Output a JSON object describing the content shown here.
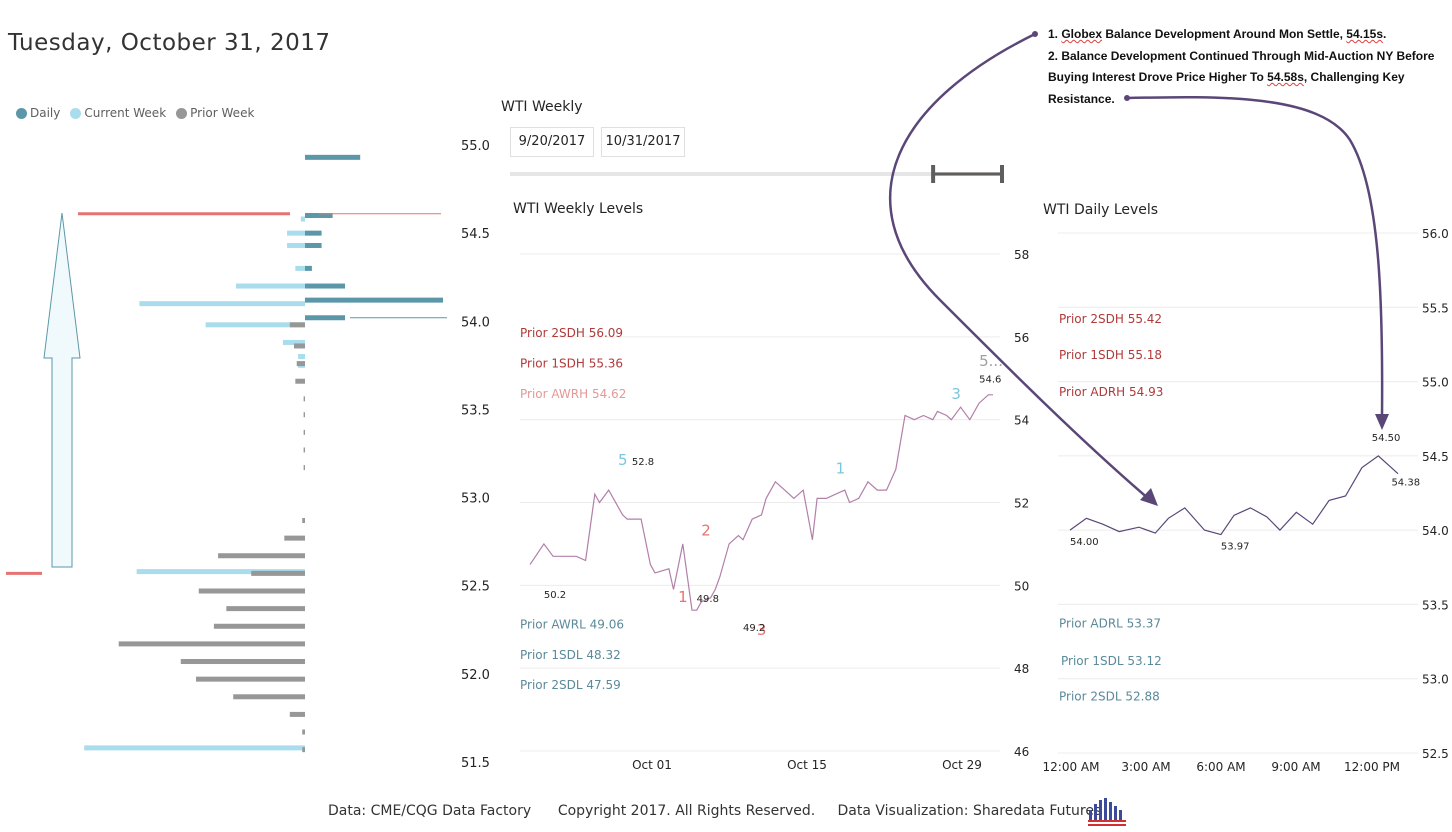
{
  "header": {
    "title": "Tuesday, October 31, 2017"
  },
  "legend": [
    {
      "label": "Daily",
      "color": "#5b97a8"
    },
    {
      "label": "Current Week",
      "color": "#a9dced"
    },
    {
      "label": "Prior Week",
      "color": "#979797"
    }
  ],
  "slicer": {
    "title": "WTI Weekly",
    "start_date": "9/20/2017",
    "end_date": "10/31/2017",
    "range_fraction": [
      0.86,
      1.0
    ]
  },
  "note": {
    "line1_prefix": "1. ",
    "line1_squig1": "Globex",
    "line1_mid": " Balance Development Around Mon Settle, ",
    "line1_squig2": "54.15s",
    "line1_end": ".",
    "line2_a": "2. Balance Development Continued Through Mid-Auction NY Before Buying Interest Drove Price Higher To ",
    "line2_squig": "54.58s",
    "line2_b": ", Challenging Key Resistance."
  },
  "footer": {
    "text": "Data: CME/CQG Data Factory      Copyright 2017. All Rights Reserved.     Data Visualization: Sharedata Futures"
  },
  "colors": {
    "daily": "#5b97a8",
    "current_week": "#a9dced",
    "prior_week": "#979797",
    "high_line": "#e57373",
    "price_line": "#b27fa9",
    "arrow": "#5a4778",
    "sdh_label": "#b03a3a",
    "sdl_label": "#5b8a9a"
  },
  "chart_data": [
    {
      "type": "bar",
      "name": "volume-profile",
      "orientation": "horizontal",
      "title": "",
      "ylim": [
        51.5,
        55.0
      ],
      "y_ticks": [
        "55.0",
        "54.5",
        "54.0",
        "53.5",
        "53.0",
        "52.5",
        "52.0",
        "51.5"
      ],
      "y_tick_values": [
        55.0,
        54.5,
        54.0,
        53.5,
        53.0,
        52.5,
        52.0,
        51.5
      ],
      "series": [
        {
          "name": "Daily",
          "side": "right",
          "values": [
            [
              54.93,
              0.4
            ],
            [
              54.6,
              0.2
            ],
            [
              54.5,
              0.12
            ],
            [
              54.43,
              0.12
            ],
            [
              54.3,
              0.05
            ],
            [
              54.2,
              0.29
            ],
            [
              54.12,
              1.0
            ],
            [
              54.02,
              0.29
            ]
          ]
        },
        {
          "name": "Current Week",
          "side": "left",
          "values": [
            [
              54.58,
              0.03
            ],
            [
              54.5,
              0.13
            ],
            [
              54.43,
              0.13
            ],
            [
              54.3,
              0.07
            ],
            [
              54.2,
              0.5
            ],
            [
              54.1,
              1.2
            ],
            [
              53.98,
              0.72
            ],
            [
              53.88,
              0.16
            ],
            [
              53.8,
              0.05
            ],
            [
              53.75,
              0.05
            ],
            [
              52.58,
              1.22
            ],
            [
              51.58,
              1.6
            ]
          ]
        },
        {
          "name": "Prior Week",
          "side": "left",
          "values": [
            [
              53.98,
              0.11
            ],
            [
              53.86,
              0.08
            ],
            [
              53.76,
              0.06
            ],
            [
              53.66,
              0.07
            ],
            [
              53.56,
              0.01
            ],
            [
              53.47,
              0.01
            ],
            [
              53.37,
              0.01
            ],
            [
              53.27,
              0.01
            ],
            [
              53.17,
              0.01
            ],
            [
              52.87,
              0.02
            ],
            [
              52.77,
              0.15
            ],
            [
              52.67,
              0.63
            ],
            [
              52.57,
              0.39
            ],
            [
              52.47,
              0.77
            ],
            [
              52.37,
              0.57
            ],
            [
              52.27,
              0.66
            ],
            [
              52.17,
              1.35
            ],
            [
              52.07,
              0.9
            ],
            [
              51.97,
              0.79
            ],
            [
              51.87,
              0.52
            ],
            [
              51.77,
              0.11
            ],
            [
              51.67,
              0.02
            ],
            [
              51.57,
              0.02
            ]
          ]
        }
      ],
      "high_line": 54.61,
      "low_line": 52.57
    },
    {
      "type": "line",
      "name": "WTI Weekly Levels",
      "title": "WTI Weekly Levels",
      "x_ticks": [
        "Oct 01",
        "Oct 15",
        "Oct 29"
      ],
      "ylim": [
        46,
        58
      ],
      "y_ticks": [
        "58",
        "56",
        "54",
        "52",
        "50",
        "48",
        "46"
      ],
      "y_tick_values": [
        58,
        56,
        54,
        52,
        50,
        48,
        46
      ],
      "series": [
        {
          "name": "WTI",
          "x": [
            0.0,
            0.03,
            0.05,
            0.08,
            0.1,
            0.12,
            0.14,
            0.15,
            0.17,
            0.2,
            0.21,
            0.24,
            0.26,
            0.27,
            0.3,
            0.31,
            0.33,
            0.35,
            0.36,
            0.37,
            0.39,
            0.4,
            0.41,
            0.43,
            0.45,
            0.46,
            0.48,
            0.5,
            0.51,
            0.53,
            0.55,
            0.57,
            0.59,
            0.61,
            0.62,
            0.64,
            0.66,
            0.68,
            0.69,
            0.71,
            0.73,
            0.75,
            0.77,
            0.79,
            0.81,
            0.83,
            0.85,
            0.87,
            0.88,
            0.9,
            0.91,
            0.93,
            0.95,
            0.97,
            0.99,
            1.0
          ],
          "y": [
            50.5,
            51.0,
            50.7,
            50.7,
            50.7,
            50.6,
            52.2,
            52.0,
            52.3,
            51.7,
            51.6,
            51.6,
            50.5,
            50.3,
            50.4,
            49.9,
            51.0,
            49.4,
            49.4,
            49.6,
            49.7,
            49.9,
            50.2,
            51.0,
            51.2,
            51.1,
            51.6,
            51.7,
            52.1,
            52.5,
            52.3,
            52.1,
            52.3,
            51.1,
            52.1,
            52.1,
            52.2,
            52.3,
            52.0,
            52.1,
            52.5,
            52.3,
            52.3,
            52.8,
            54.1,
            54.0,
            54.1,
            54.0,
            54.2,
            54.1,
            54.0,
            54.3,
            54.0,
            54.4,
            54.6,
            54.6
          ]
        }
      ],
      "levels": [
        {
          "label": "Prior 2SDH 56.09",
          "value": 56.09,
          "kind": "high"
        },
        {
          "label": "Prior 1SDH 55.36",
          "value": 55.36,
          "kind": "high"
        },
        {
          "label": "Prior AWRH 54.62",
          "value": 54.62,
          "kind": "high-light"
        },
        {
          "label": "Prior AWRL 49.06",
          "value": 49.06,
          "kind": "low"
        },
        {
          "label": "Prior 1SDL 48.32",
          "value": 48.32,
          "kind": "low"
        },
        {
          "label": "Prior 2SDL 47.59",
          "value": 47.59,
          "kind": "low"
        }
      ],
      "annotations": [
        {
          "text": "5",
          "x": 0.19,
          "y": 52.9,
          "color": "blue"
        },
        {
          "text": "52.8",
          "x": 0.22,
          "y": 52.9,
          "color": "dark"
        },
        {
          "text": "1",
          "x": 0.66,
          "y": 52.7,
          "color": "blue"
        },
        {
          "text": "3",
          "x": 0.91,
          "y": 54.5,
          "color": "blue"
        },
        {
          "text": "5...",
          "x": 0.97,
          "y": 55.3,
          "color": "grey"
        },
        {
          "text": "54.6",
          "x": 0.97,
          "y": 54.9,
          "color": "dark"
        },
        {
          "text": "2",
          "x": 0.37,
          "y": 51.2,
          "color": "red"
        },
        {
          "text": "1",
          "x": 0.32,
          "y": 49.6,
          "color": "red"
        },
        {
          "text": "3",
          "x": 0.49,
          "y": 48.8,
          "color": "red"
        },
        {
          "text": "50.2",
          "x": 0.03,
          "y": 49.7,
          "color": "dark"
        },
        {
          "text": "49.8",
          "x": 0.36,
          "y": 49.6,
          "color": "dark"
        },
        {
          "text": "49.2",
          "x": 0.46,
          "y": 48.9,
          "color": "dark"
        }
      ]
    },
    {
      "type": "line",
      "name": "WTI Daily Levels",
      "title": "WTI Daily Levels",
      "x_ticks": [
        "12:00 AM",
        "3:00 AM",
        "6:00 AM",
        "9:00 AM",
        "12:00 PM"
      ],
      "ylim": [
        52.5,
        56.0
      ],
      "y_ticks": [
        "56.0",
        "55.5",
        "55.0",
        "54.5",
        "54.0",
        "53.5",
        "53.0",
        "52.5"
      ],
      "y_tick_values": [
        56.0,
        55.5,
        55.0,
        54.5,
        54.0,
        53.5,
        53.0,
        52.5
      ],
      "series": [
        {
          "name": "WTI",
          "x": [
            0.0,
            0.05,
            0.1,
            0.15,
            0.21,
            0.26,
            0.3,
            0.35,
            0.41,
            0.46,
            0.5,
            0.55,
            0.6,
            0.64,
            0.69,
            0.74,
            0.79,
            0.84,
            0.89,
            0.94,
            0.98,
            1.0
          ],
          "y": [
            54.0,
            54.08,
            54.04,
            53.99,
            54.02,
            53.98,
            54.08,
            54.15,
            54.0,
            53.97,
            54.1,
            54.15,
            54.09,
            54.0,
            54.12,
            54.04,
            54.2,
            54.23,
            54.42,
            54.5,
            54.42,
            54.38
          ]
        }
      ],
      "levels": [
        {
          "label": "Prior 2SDH 55.42",
          "value": 55.42,
          "kind": "high"
        },
        {
          "label": "Prior 1SDH 55.18",
          "value": 55.18,
          "kind": "high"
        },
        {
          "label": "Prior ADRH 54.93",
          "value": 54.93,
          "kind": "high"
        },
        {
          "label": "Prior ADRL 53.37",
          "value": 53.37,
          "kind": "low"
        },
        {
          "label": "Prior 1SDL 53.12",
          "value": 53.12,
          "kind": "low"
        },
        {
          "label": "Prior 2SDL 52.88",
          "value": 52.88,
          "kind": "low"
        }
      ],
      "annotations": [
        {
          "text": "54.00",
          "x": 0.0,
          "y": 53.9
        },
        {
          "text": "53.97",
          "x": 0.46,
          "y": 53.87
        },
        {
          "text": "54.50",
          "x": 0.92,
          "y": 54.6
        },
        {
          "text": "54.38",
          "x": 0.98,
          "y": 54.3
        }
      ]
    }
  ]
}
